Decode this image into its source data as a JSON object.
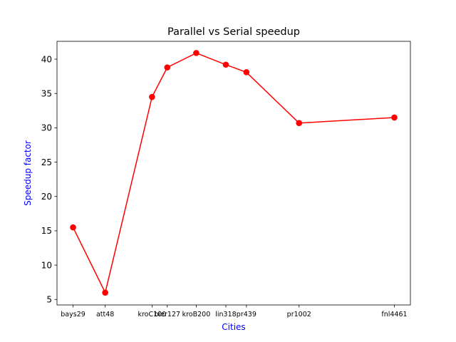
{
  "chart_data": {
    "type": "line",
    "title": "Parallel vs Serial speedup",
    "xlabel": "Cities",
    "ylabel": "Speedup factor",
    "axis_label_color": "#0000ff",
    "series_color": "#ff0000",
    "x_numeric": [
      29,
      48,
      100,
      127,
      200,
      318,
      439,
      1002,
      4461
    ],
    "x_scale": "log",
    "categories": [
      "bays29",
      "att48",
      "kroC100",
      "bier127",
      "kroB200",
      "lin318",
      "pr439",
      "pr1002",
      "fnl4461"
    ],
    "values": [
      15.5,
      6.0,
      34.5,
      38.8,
      40.9,
      39.2,
      38.1,
      30.7,
      31.5
    ],
    "yticks": [
      5,
      10,
      15,
      20,
      25,
      30,
      35,
      40
    ],
    "ylim": [
      4.2,
      42.6
    ],
    "grid": false,
    "marker": "circle"
  }
}
